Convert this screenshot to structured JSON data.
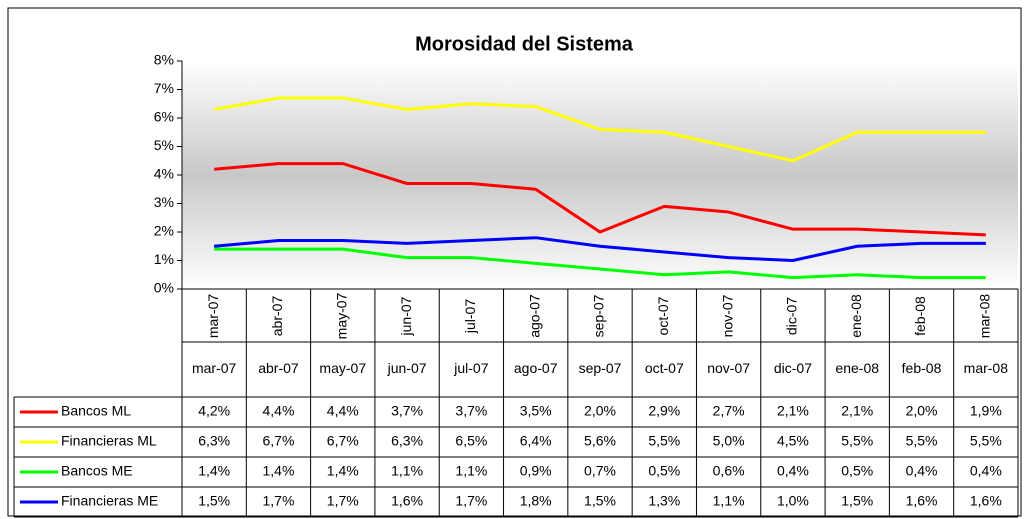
{
  "chart_data": {
    "type": "line",
    "title": "Morosidad del Sistema",
    "categories": [
      "mar-07",
      "abr-07",
      "may-07",
      "jun-07",
      "jul-07",
      "ago-07",
      "sep-07",
      "oct-07",
      "nov-07",
      "dic-07",
      "ene-08",
      "feb-08",
      "mar-08"
    ],
    "series": [
      {
        "name": "Bancos ML",
        "color": "#ff0000",
        "values": [
          4.2,
          4.4,
          4.4,
          3.7,
          3.7,
          3.5,
          2.0,
          2.9,
          2.7,
          2.1,
          2.1,
          2.0,
          1.9
        ],
        "value_labels": [
          "4,2%",
          "4,4%",
          "4,4%",
          "3,7%",
          "3,7%",
          "3,5%",
          "2,0%",
          "2,9%",
          "2,7%",
          "2,1%",
          "2,1%",
          "2,0%",
          "1,9%"
        ]
      },
      {
        "name": "Financieras ML",
        "color": "#ffff00",
        "values": [
          6.3,
          6.7,
          6.7,
          6.3,
          6.5,
          6.4,
          5.6,
          5.5,
          5.0,
          4.5,
          5.5,
          5.5,
          5.5
        ],
        "value_labels": [
          "6,3%",
          "6,7%",
          "6,7%",
          "6,3%",
          "6,5%",
          "6,4%",
          "5,6%",
          "5,5%",
          "5,0%",
          "4,5%",
          "5,5%",
          "5,5%",
          "5,5%"
        ]
      },
      {
        "name": "Bancos ME",
        "color": "#00ff00",
        "values": [
          1.4,
          1.4,
          1.4,
          1.1,
          1.1,
          0.9,
          0.7,
          0.5,
          0.6,
          0.4,
          0.5,
          0.4,
          0.4
        ],
        "value_labels": [
          "1,4%",
          "1,4%",
          "1,4%",
          "1,1%",
          "1,1%",
          "0,9%",
          "0,7%",
          "0,5%",
          "0,6%",
          "0,4%",
          "0,5%",
          "0,4%",
          "0,4%"
        ]
      },
      {
        "name": "Financieras ME",
        "color": "#0000ff",
        "values": [
          1.5,
          1.7,
          1.7,
          1.6,
          1.7,
          1.8,
          1.5,
          1.3,
          1.1,
          1.0,
          1.5,
          1.6,
          1.6
        ],
        "value_labels": [
          "1,5%",
          "1,7%",
          "1,7%",
          "1,6%",
          "1,7%",
          "1,8%",
          "1,5%",
          "1,3%",
          "1,1%",
          "1,0%",
          "1,5%",
          "1,6%",
          "1,6%"
        ]
      }
    ],
    "ylim": [
      0,
      8
    ],
    "yticks": [
      {
        "value": 0,
        "label": "0%"
      },
      {
        "value": 1,
        "label": "1%"
      },
      {
        "value": 2,
        "label": "2%"
      },
      {
        "value": 3,
        "label": "3%"
      },
      {
        "value": 4,
        "label": "4%"
      },
      {
        "value": 5,
        "label": "5%"
      },
      {
        "value": 6,
        "label": "6%"
      },
      {
        "value": 7,
        "label": "7%"
      },
      {
        "value": 8,
        "label": "8%"
      }
    ],
    "grid": false
  }
}
